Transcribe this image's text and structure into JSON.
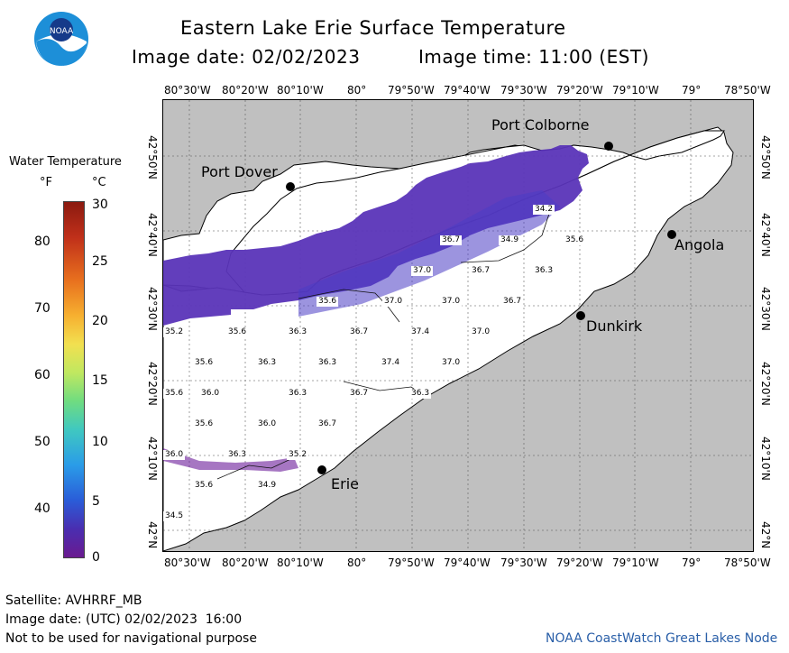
{
  "header": {
    "title": "Eastern Lake Erie Surface Temperature",
    "image_date_label": "Image date: 02/02/2023",
    "image_time_label": "Image time: 11:00 (EST)"
  },
  "axes": {
    "lon_ticks": [
      "80°30'W",
      "80°20'W",
      "80°10'W",
      "80°",
      "79°50'W",
      "79°40'W",
      "79°30'W",
      "79°20'W",
      "79°10'W",
      "79°",
      "78°50'W"
    ],
    "lat_ticks_right": [
      "42°50'N",
      "42°40'N",
      "42°30'N",
      "42°20'N",
      "42°10'N",
      "42°N"
    ],
    "lat_ticks_left": [
      "42°50'N",
      "42°40'N",
      "42°30'N",
      "42°20'N",
      "42°10'N",
      "42°N"
    ]
  },
  "places": {
    "port_colborne": "Port Colborne",
    "port_dover": "Port Dover",
    "angola": "Angola",
    "dunkirk": "Dunkirk",
    "erie": "Erie"
  },
  "temperatures": [
    "34.2",
    "36.7",
    "34.9",
    "35.6",
    "37.0",
    "36.7",
    "36.3",
    "35.6",
    "37.0",
    "37.0",
    "36.7",
    "35.2",
    "35.6",
    "36.3",
    "36.7",
    "37.4",
    "37.0",
    "35.6",
    "36.3",
    "36.3",
    "37.4",
    "37.0",
    "35.6",
    "36.0",
    "36.3",
    "36.7",
    "36.3",
    "35.6",
    "36.0",
    "36.7",
    "36.0",
    "36.3",
    "35.2",
    "35.6",
    "34.9",
    "34.5"
  ],
  "legend": {
    "title": "Water Temperature",
    "unit_f": "°F",
    "unit_c": "°C",
    "f_ticks": [
      "80",
      "70",
      "60",
      "50",
      "40"
    ],
    "c_ticks": [
      "30",
      "25",
      "20",
      "15",
      "10",
      "5",
      "0"
    ],
    "colors": [
      "#8b1a10",
      "#d0401a",
      "#f08a20",
      "#f7c840",
      "#e8ec60",
      "#a8e070",
      "#50d090",
      "#30c0d8",
      "#2890e8",
      "#2a50d0",
      "#4830a8",
      "#6a1a90"
    ]
  },
  "footer": {
    "satellite": "Satellite: AVHRRF_MB",
    "utc_date": "Image date: (UTC) 02/02/2023  16:00",
    "disclaimer": "Not to be used for navigational purpose",
    "credit": "NOAA CoastWatch Great Lakes Node"
  },
  "logo": {
    "text": "NOAA"
  }
}
